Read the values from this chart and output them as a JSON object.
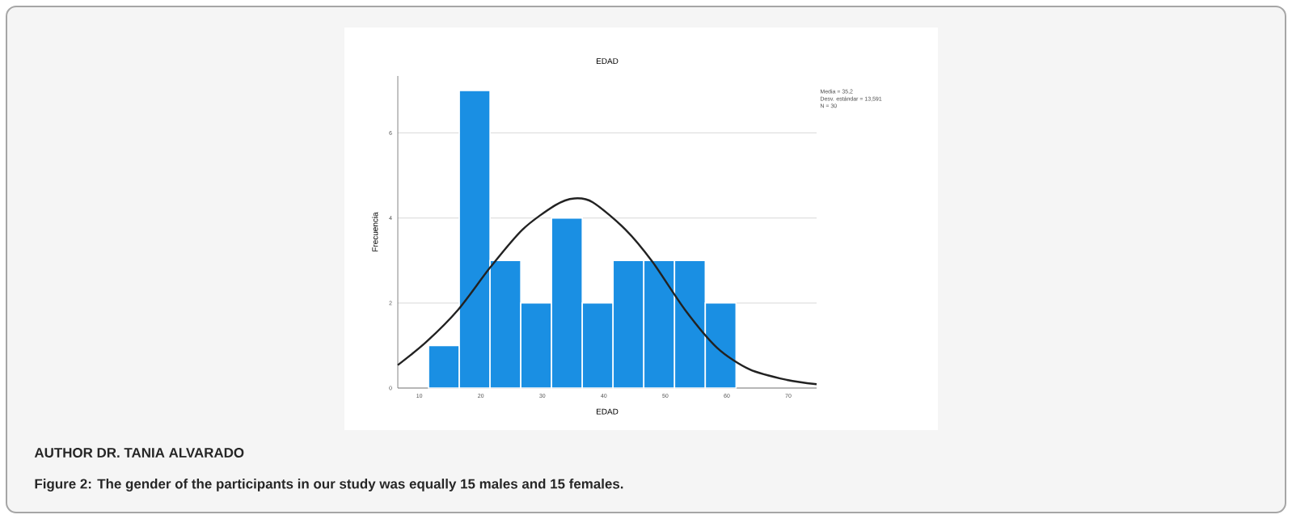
{
  "chart_data": {
    "type": "histogram",
    "title": "EDAD",
    "xlabel": "EDAD",
    "ylabel": "Frecuencia",
    "bins": [
      11.5,
      16.5,
      21.5,
      26.5,
      31.5,
      36.5,
      41.5,
      46.5,
      51.5,
      56.5,
      61.5
    ],
    "values": [
      1,
      7,
      3,
      2,
      4,
      2,
      3,
      3,
      3,
      2
    ],
    "color": "#1a8fe3",
    "series": [
      {
        "type": "line",
        "color": "#222222",
        "x": [
          6.5,
          11.1,
          16.3,
          21.6,
          26.8,
          32.1,
          35.2,
          38.2,
          43.5,
          47.9,
          53.2,
          58.4,
          63.7,
          69.8,
          74.6
        ],
        "values": [
          0.54,
          1.08,
          1.84,
          2.85,
          3.73,
          4.3,
          4.46,
          4.37,
          3.73,
          2.97,
          1.84,
          0.95,
          0.44,
          0.19,
          0.09
        ]
      }
    ],
    "xlim": [
      6.5,
      74.6
    ],
    "ylim": [
      0,
      7.34
    ],
    "xticks": [
      10,
      20,
      30,
      40,
      50,
      60,
      70
    ],
    "yticks": [
      0,
      2,
      4,
      6
    ],
    "grid": "y",
    "annotations": [
      "Media = 35,2",
      "Desv. estándar = 13,591",
      "N = 30",
      "AUTHOR DR. TANIA ALVARADO",
      "Figure 2: The gender of the participants in our study was equally 15 males and 15 females."
    ]
  }
}
